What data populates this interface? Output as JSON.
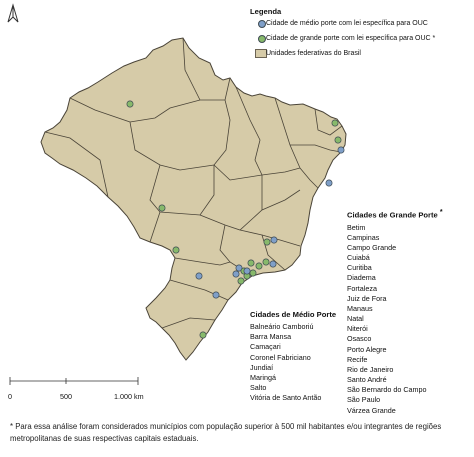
{
  "legend": {
    "title": "Legenda",
    "items": [
      {
        "label": "Cidade de médio porte com lei específica para OUC",
        "color": "#7f9fc8",
        "marker": "blue-circle"
      },
      {
        "label": "Cidade de grande porte com lei específica para OUC",
        "asterisk": "*",
        "color": "#87b96b",
        "marker": "green-circle"
      },
      {
        "label": "Unidades federativas do Brasil",
        "color": "#d6cba8",
        "marker": "beige-square"
      }
    ]
  },
  "large_cities": {
    "title": "Cidades de Grande Porte",
    "asterisk": "*",
    "names": [
      "Betim",
      "Campinas",
      "Campo Grande",
      "Cuiabá",
      "Curitiba",
      "Diadema",
      "Fortaleza",
      "Juiz de Fora",
      "Manaus",
      "Natal",
      "Niterói",
      "Osasco",
      "Porto Alegre",
      "Recife",
      "Rio de Janeiro",
      "Santo André",
      "São Bernardo do Campo",
      "São Paulo",
      "Várzea Grande"
    ]
  },
  "medium_cities": {
    "title": "Cidades de Médio Porte",
    "names": [
      "Balneário Camboriú",
      "Barra Mansa",
      "Camaçari",
      "Coronel Fabriciano",
      "Jundiaí",
      "Maringá",
      "Salto",
      "Vitória de Santo Antão"
    ]
  },
  "scale": {
    "labels": [
      "0",
      "500",
      "1.000 km"
    ]
  },
  "footnote": "* Para essa análise foram considerados municípios com população superior à 500 mil habitantes e/ou integrantes de regiões metropolitanas de suas respectivas capitais estaduais.",
  "colors": {
    "land": "#d6cba8",
    "border": "#4a4438",
    "green": "#87b96b",
    "blue": "#7f9fc8"
  }
}
